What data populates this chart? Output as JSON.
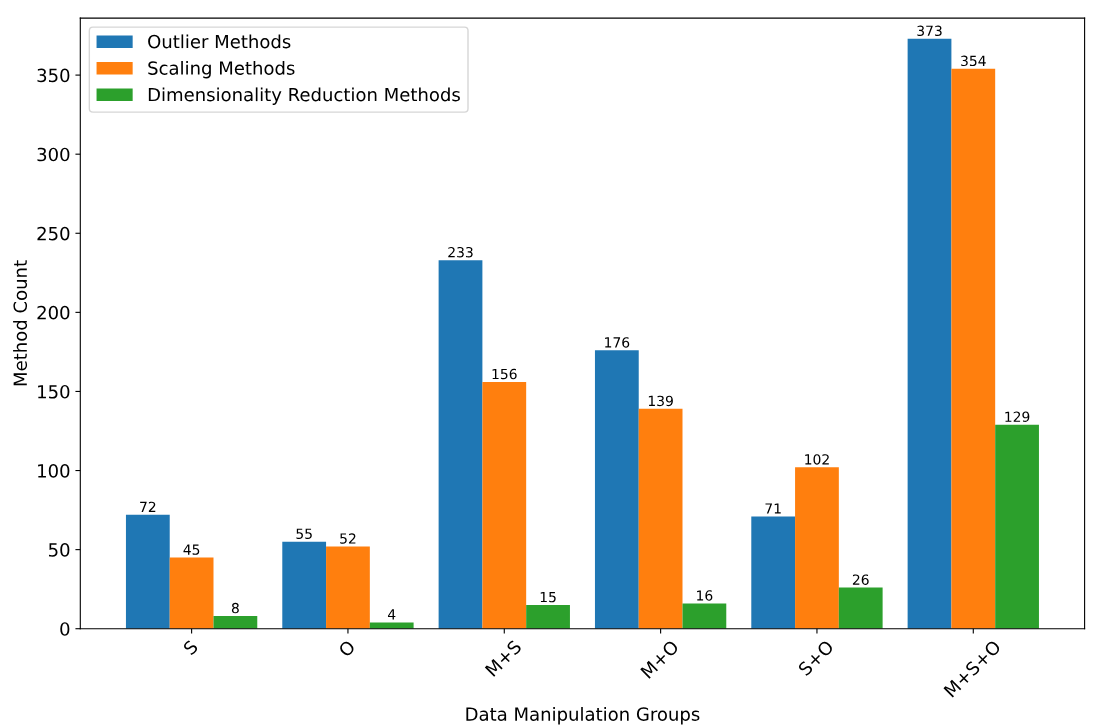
{
  "chart_data": {
    "type": "bar",
    "xlabel": "Data Manipulation Groups",
    "ylabel": "Method Count",
    "categories": [
      "S",
      "O",
      "M+S",
      "M+O",
      "S+O",
      "M+S+O"
    ],
    "series": [
      {
        "name": "Outlier Methods",
        "color": "#1f77b4",
        "values": [
          72,
          55,
          233,
          176,
          71,
          373
        ]
      },
      {
        "name": "Scaling Methods",
        "color": "#ff7f0e",
        "values": [
          45,
          52,
          156,
          139,
          102,
          354
        ]
      },
      {
        "name": "Dimensionality Reduction Methods",
        "color": "#2ca02c",
        "values": [
          8,
          4,
          15,
          16,
          26,
          129
        ]
      }
    ],
    "ylim": [
      0,
      386
    ],
    "yticks": [
      0,
      50,
      100,
      150,
      200,
      250,
      300,
      350
    ],
    "data_labels": true,
    "legend": "top left",
    "grid": false
  }
}
